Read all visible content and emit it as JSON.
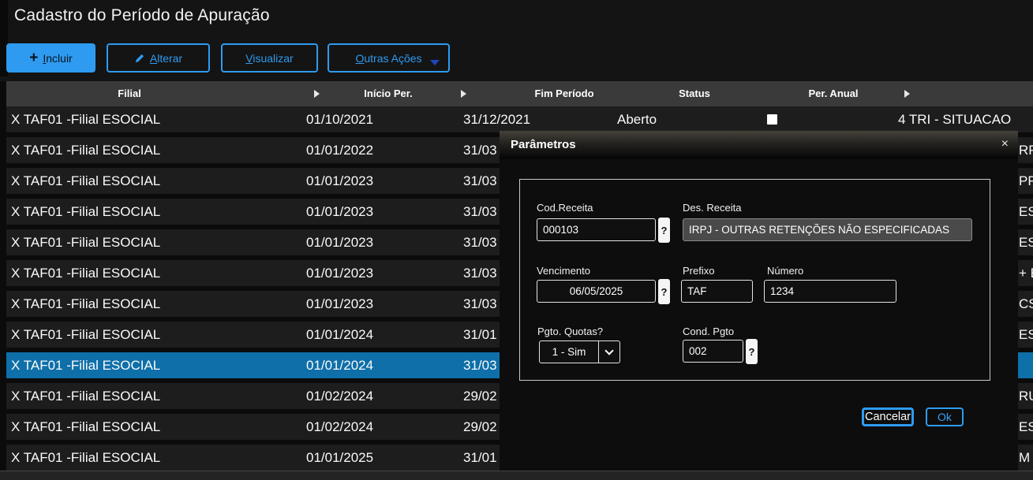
{
  "page": {
    "title": "Cadastro do Período de Apuração"
  },
  "colors": {
    "accent": "#2e9bf0",
    "selected_row": "#0e6fa9",
    "header_row": "#3a3a3a",
    "primary_button": "#2e9bf0"
  },
  "icons": {
    "plus": "+",
    "close": "×",
    "question": "?",
    "pencil": "pencil",
    "caret_down": "caret-down",
    "chevron_down": "chevron-down",
    "sort_arrow": "right-triangle"
  },
  "toolbar": {
    "incluir_label": "Incluir",
    "alterar_label": "Alterar",
    "visualizar_label": "Visualizar",
    "outras_acoes_label": "Outras Ações"
  },
  "table": {
    "columns": {
      "filial": "Filial",
      "inicio": "Início Per.",
      "fim": "Fim Período",
      "status": "Status",
      "per_anual": "Per. Anual"
    },
    "rows": [
      {
        "filial": "X TAF01 -Filial ESOCIAL",
        "inicio": "01/10/2021",
        "fim": "31/12/2021",
        "status": "Aberto",
        "checkbox": "unchecked",
        "per_anual": "4 TRI - SITUACAO",
        "fragment": "",
        "selected": false
      },
      {
        "filial": "X TAF01 -Filial ESOCIAL",
        "inicio": "01/01/2022",
        "fim": "31/03",
        "status": "",
        "per_anual": "",
        "fragment": "RP",
        "selected": false
      },
      {
        "filial": "X TAF01 -Filial ESOCIAL",
        "inicio": "01/01/2023",
        "fim": "31/03",
        "status": "",
        "per_anual": "",
        "fragment": "PR",
        "selected": false
      },
      {
        "filial": "X TAF01 -Filial ESOCIAL",
        "inicio": "01/01/2023",
        "fim": "31/03",
        "status": "",
        "per_anual": "",
        "fragment": "ES",
        "selected": false
      },
      {
        "filial": "X TAF01 -Filial ESOCIAL",
        "inicio": "01/01/2023",
        "fim": "31/03",
        "status": "",
        "per_anual": "",
        "fragment": "ES",
        "selected": false
      },
      {
        "filial": "X TAF01 -Filial ESOCIAL",
        "inicio": "01/01/2023",
        "fim": "31/03",
        "status": "",
        "per_anual": "",
        "fragment": "+ E",
        "selected": false
      },
      {
        "filial": "X TAF01 -Filial ESOCIAL",
        "inicio": "01/01/2023",
        "fim": "31/03",
        "status": "",
        "per_anual": "",
        "fragment": "CS",
        "selected": false
      },
      {
        "filial": "X TAF01 -Filial ESOCIAL",
        "inicio": "01/01/2024",
        "fim": "31/01",
        "status": "",
        "per_anual": "",
        "fragment": "ES",
        "selected": false
      },
      {
        "filial": "X TAF01 -Filial ESOCIAL",
        "inicio": "01/01/2024",
        "fim": "31/03",
        "status": "",
        "per_anual": "",
        "fragment": "",
        "selected": true
      },
      {
        "filial": "X TAF01 -Filial ESOCIAL",
        "inicio": "01/02/2024",
        "fim": "29/02",
        "status": "",
        "per_anual": "",
        "fragment": "RU",
        "selected": false
      },
      {
        "filial": "X TAF01 -Filial ESOCIAL",
        "inicio": "01/02/2024",
        "fim": "29/02",
        "status": "",
        "per_anual": "",
        "fragment": "ES",
        "selected": false
      },
      {
        "filial": "X TAF01 -Filial ESOCIAL",
        "inicio": "01/01/2025",
        "fim": "31/01",
        "status": "",
        "per_anual": "",
        "fragment": "M",
        "selected": false
      }
    ]
  },
  "modal": {
    "title": "Parâmetros",
    "close_glyph": "×",
    "helper_glyph": "?",
    "fields": {
      "cod_receita": {
        "label": "Cod.Receita",
        "value": "000103"
      },
      "des_receita": {
        "label": "Des. Receita",
        "value": "IRPJ - OUTRAS RETENÇÕES NÃO ESPECIFICADAS"
      },
      "vencimento": {
        "label": "Vencimento",
        "value": "06/05/2025"
      },
      "prefixo": {
        "label": "Prefixo",
        "value": "TAF"
      },
      "numero": {
        "label": "Número",
        "value": "1234"
      },
      "pgto_quotas": {
        "label": "Pgto. Quotas?",
        "value": "1 - Sim"
      },
      "cond_pgto": {
        "label": "Cond. Pgto",
        "value": "002"
      }
    },
    "buttons": {
      "cancelar": "Cancelar",
      "ok": "Ok"
    }
  }
}
